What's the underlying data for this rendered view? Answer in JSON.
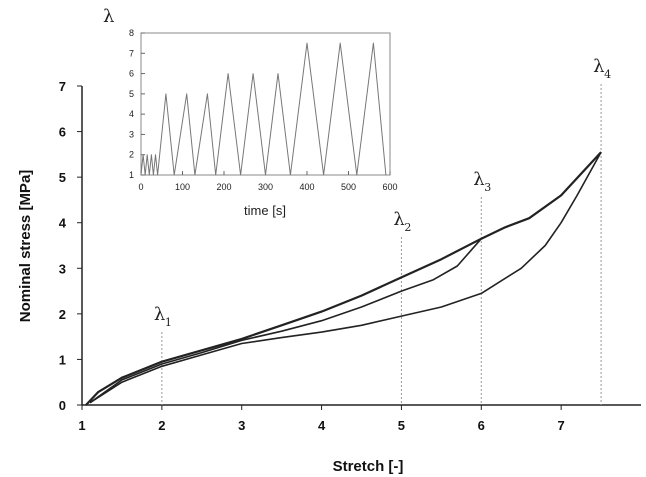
{
  "chart_data": [
    {
      "type": "line",
      "xlabel": "Stretch [-]",
      "ylabel": "Nominal stress [MPa]",
      "xlim": [
        1,
        8
      ],
      "ylim": [
        0,
        7
      ],
      "xticks": [
        1,
        2,
        3,
        4,
        5,
        6,
        7
      ],
      "yticks": [
        0,
        1,
        2,
        3,
        4,
        5,
        6,
        7
      ],
      "grid": false,
      "annotations": [
        {
          "label": "λ",
          "sub": "1",
          "x": 2
        },
        {
          "label": "λ",
          "sub": "2",
          "x": 5
        },
        {
          "label": "λ",
          "sub": "3",
          "x": 6
        },
        {
          "label": "λ",
          "sub": "4",
          "x": 7.5
        }
      ],
      "series": [
        {
          "points": [
            [
              1.05,
              0
            ],
            [
              1.2,
              0.28
            ],
            [
              1.5,
              0.6
            ],
            [
              2,
              0.95
            ],
            [
              2.5,
              1.2
            ],
            [
              3,
              1.45
            ],
            [
              3.5,
              1.75
            ],
            [
              4,
              2.05
            ],
            [
              4.5,
              2.4
            ],
            [
              5,
              2.8
            ],
            [
              5.5,
              3.2
            ],
            [
              6,
              3.65
            ],
            [
              6.3,
              3.9
            ],
            [
              6.6,
              4.1
            ],
            [
              7,
              4.6
            ],
            [
              7.5,
              5.55
            ]
          ]
        },
        {
          "points": [
            [
              7.5,
              5.55
            ],
            [
              7.2,
              4.6
            ],
            [
              7,
              4
            ],
            [
              6.8,
              3.5
            ],
            [
              6.5,
              3
            ],
            [
              6,
              2.45
            ],
            [
              5.5,
              2.15
            ],
            [
              5,
              1.95
            ],
            [
              4.5,
              1.75
            ],
            [
              4,
              1.6
            ],
            [
              3.5,
              1.48
            ],
            [
              3,
              1.35
            ],
            [
              2.5,
              1.1
            ],
            [
              2,
              0.85
            ],
            [
              1.5,
              0.5
            ],
            [
              1.1,
              0.05
            ]
          ]
        },
        {
          "points": [
            [
              6,
              3.65
            ],
            [
              5.7,
              3.05
            ],
            [
              5.4,
              2.75
            ],
            [
              5,
              2.5
            ],
            [
              4.5,
              2.15
            ],
            [
              4,
              1.85
            ],
            [
              3.5,
              1.62
            ],
            [
              3,
              1.42
            ],
            [
              2.5,
              1.15
            ],
            [
              2,
              0.9
            ],
            [
              1.5,
              0.55
            ],
            [
              1.1,
              0.05
            ]
          ]
        }
      ]
    },
    {
      "type": "line",
      "xlabel": "time [s]",
      "ylabel": "λ",
      "xlim": [
        0,
        600
      ],
      "ylim": [
        1,
        8
      ],
      "xticks": [
        0,
        100,
        200,
        300,
        400,
        500,
        600
      ],
      "yticks": [
        1,
        2,
        3,
        4,
        5,
        6,
        7,
        8
      ],
      "grid": false,
      "series": [
        {
          "points": [
            [
              0,
              1
            ],
            [
              5,
              2
            ],
            [
              10,
              1
            ],
            [
              15,
              2
            ],
            [
              20,
              1
            ],
            [
              25,
              2
            ],
            [
              30,
              1
            ],
            [
              35,
              2
            ],
            [
              40,
              1
            ],
            [
              60,
              5
            ],
            [
              80,
              1
            ],
            [
              110,
              5
            ],
            [
              130,
              1
            ],
            [
              160,
              5
            ],
            [
              180,
              1
            ],
            [
              210,
              6
            ],
            [
              240,
              1
            ],
            [
              270,
              6
            ],
            [
              300,
              1
            ],
            [
              330,
              6
            ],
            [
              360,
              1
            ],
            [
              400,
              7.5
            ],
            [
              440,
              1
            ],
            [
              480,
              7.5
            ],
            [
              520,
              1
            ],
            [
              560,
              7.5
            ],
            [
              590,
              1
            ]
          ]
        }
      ]
    }
  ]
}
